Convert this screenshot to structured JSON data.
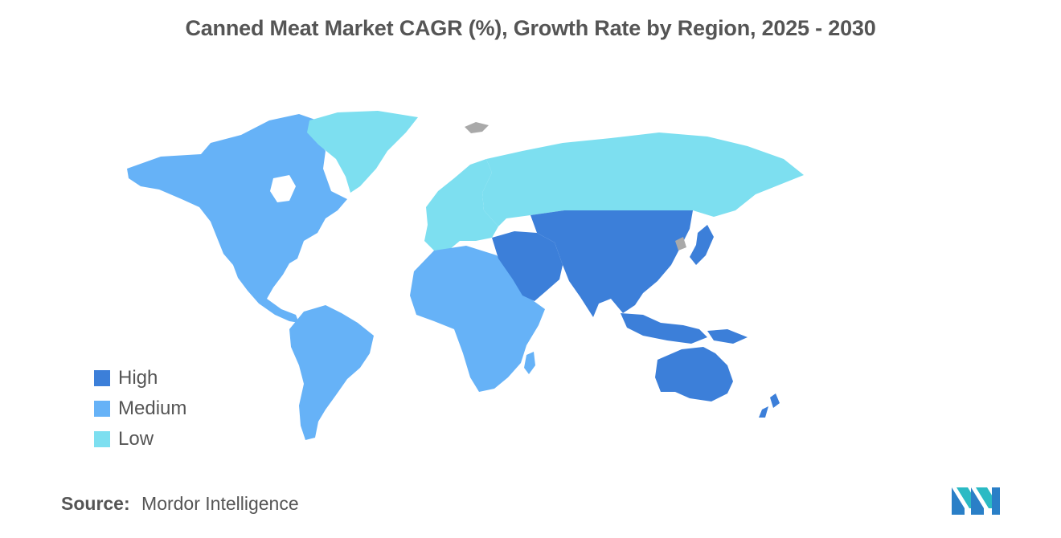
{
  "title": "Canned Meat Market CAGR (%), Growth Rate by Region, 2025 - 2030",
  "legend": [
    {
      "label": "High",
      "color": "#3c7fd9"
    },
    {
      "label": "Medium",
      "color": "#66b2f7"
    },
    {
      "label": "Low",
      "color": "#7ddff0"
    }
  ],
  "regions": [
    {
      "name": "north-america",
      "level": "Medium"
    },
    {
      "name": "south-america",
      "level": "Medium"
    },
    {
      "name": "africa",
      "level": "Medium"
    },
    {
      "name": "greenland",
      "level": "Low"
    },
    {
      "name": "europe",
      "level": "Low"
    },
    {
      "name": "russia",
      "level": "Low"
    },
    {
      "name": "middle-east",
      "level": "High"
    },
    {
      "name": "asia",
      "level": "High"
    },
    {
      "name": "japan",
      "level": "High"
    },
    {
      "name": "southeast-asia",
      "level": "High"
    },
    {
      "name": "australia",
      "level": "High"
    },
    {
      "name": "new-zealand",
      "level": "High"
    }
  ],
  "no_data_color": "#a9a9a9",
  "source": {
    "label": "Source:",
    "value": "Mordor Intelligence"
  }
}
